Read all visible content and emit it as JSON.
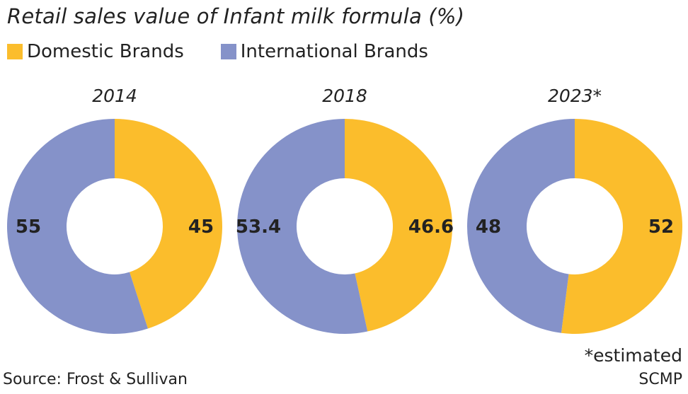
{
  "chart_data": {
    "type": "pie",
    "style": "donut",
    "title": "Retail sales value of Infant milk formula (%)",
    "legend": {
      "placement": "top-left",
      "entries": [
        "Domestic Brands",
        "International Brands"
      ]
    },
    "colors": {
      "Domestic Brands": "#fbbd2c",
      "International Brands": "#8592c9"
    },
    "charts": [
      {
        "label": "2014",
        "series": [
          {
            "name": "Domestic Brands",
            "value": 45,
            "label": "45"
          },
          {
            "name": "International Brands",
            "value": 55,
            "label": "55"
          }
        ]
      },
      {
        "label": "2018",
        "series": [
          {
            "name": "Domestic Brands",
            "value": 46.6,
            "label": "46.6"
          },
          {
            "name": "International Brands",
            "value": 53.4,
            "label": "53.4"
          }
        ]
      },
      {
        "label": "2023*",
        "series": [
          {
            "name": "Domestic Brands",
            "value": 52,
            "label": "52"
          },
          {
            "name": "International Brands",
            "value": 48,
            "label": "48"
          }
        ]
      }
    ]
  },
  "footer": {
    "note": "*estimated",
    "source": "Source: Frost & Sullivan",
    "credit": "SCMP"
  }
}
